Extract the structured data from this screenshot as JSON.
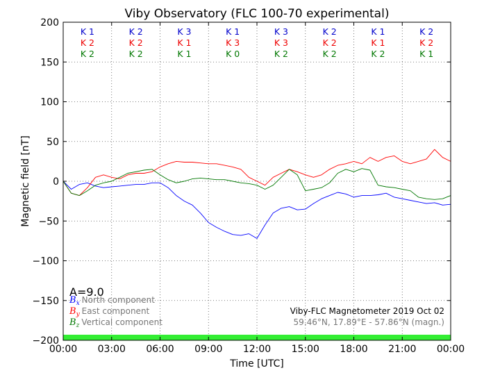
{
  "chart_data": {
    "type": "line",
    "title": "Viby Observatory (FLC 100-70 experimental)",
    "xlabel": "Time [UTC]",
    "ylabel": "Magnetic field [nT]",
    "xlim": [
      0,
      24
    ],
    "ylim": [
      -200,
      200
    ],
    "x_ticks": [
      {
        "v": 0,
        "label": "00:00"
      },
      {
        "v": 3,
        "label": "03:00"
      },
      {
        "v": 6,
        "label": "06:00"
      },
      {
        "v": 9,
        "label": "09:00"
      },
      {
        "v": 12,
        "label": "12:00"
      },
      {
        "v": 15,
        "label": "15:00"
      },
      {
        "v": 18,
        "label": "18:00"
      },
      {
        "v": 21,
        "label": "21:00"
      },
      {
        "v": 24,
        "label": "00:00"
      }
    ],
    "y_ticks": [
      {
        "v": 200,
        "label": "200"
      },
      {
        "v": 150,
        "label": "150"
      },
      {
        "v": 100,
        "label": "100"
      },
      {
        "v": 50,
        "label": "50"
      },
      {
        "v": 0,
        "label": "0"
      },
      {
        "v": -50,
        "label": "−50"
      },
      {
        "v": -100,
        "label": "−100"
      },
      {
        "v": -150,
        "label": "−150"
      },
      {
        "v": -200,
        "label": "−200"
      }
    ],
    "grid": true,
    "band": {
      "from": -200,
      "to": -193,
      "color": "#33ee33"
    },
    "x": [
      0,
      0.5,
      1,
      1.5,
      2,
      2.5,
      3,
      3.5,
      4,
      4.5,
      5,
      5.5,
      6,
      6.5,
      7,
      7.5,
      8,
      8.5,
      9,
      9.5,
      10,
      10.5,
      11,
      11.5,
      12,
      12.5,
      13,
      13.5,
      14,
      14.5,
      15,
      15.5,
      16,
      16.5,
      17,
      17.5,
      18,
      18.5,
      19,
      19.5,
      20,
      20.5,
      21,
      21.5,
      22,
      22.5,
      23,
      23.5,
      24
    ],
    "series": [
      {
        "key": "bx",
        "color": "#0000ff",
        "values": [
          0,
          -10,
          -4,
          -2,
          -6,
          -8,
          -7,
          -6,
          -5,
          -4,
          -4,
          -2,
          -2,
          -8,
          -18,
          -25,
          -30,
          -40,
          -52,
          -58,
          -63,
          -67,
          -68,
          -66,
          -72,
          -55,
          -40,
          -34,
          -32,
          -36,
          -35,
          -28,
          -22,
          -18,
          -14,
          -16,
          -20,
          -18,
          -18,
          -17,
          -15,
          -20,
          -22,
          -24,
          -26,
          -28,
          -27,
          -30,
          -29
        ]
      },
      {
        "key": "by",
        "color": "#ff0000",
        "values": [
          0,
          -15,
          -18,
          -8,
          5,
          8,
          5,
          3,
          8,
          10,
          10,
          12,
          18,
          22,
          25,
          24,
          24,
          23,
          22,
          22,
          20,
          18,
          15,
          5,
          0,
          -5,
          5,
          10,
          15,
          12,
          8,
          5,
          8,
          15,
          20,
          22,
          25,
          22,
          30,
          25,
          30,
          32,
          25,
          22,
          25,
          28,
          40,
          30,
          25
        ]
      },
      {
        "key": "bz",
        "color": "#007700",
        "values": [
          0,
          -15,
          -18,
          -12,
          -5,
          -2,
          0,
          5,
          10,
          12,
          14,
          15,
          8,
          2,
          -2,
          0,
          3,
          4,
          3,
          2,
          2,
          0,
          -2,
          -3,
          -5,
          -10,
          -5,
          5,
          15,
          8,
          -12,
          -10,
          -8,
          -2,
          10,
          15,
          12,
          16,
          14,
          -5,
          -7,
          -8,
          -10,
          -12,
          -20,
          -22,
          -23,
          -22,
          -18
        ]
      }
    ],
    "k_index": [
      {
        "x": 1.5,
        "k1": "K 1",
        "k2": "K 2",
        "k3": "K 2"
      },
      {
        "x": 4.5,
        "k1": "K 2",
        "k2": "K 2",
        "k3": "K 2"
      },
      {
        "x": 7.5,
        "k1": "K 3",
        "k2": "K 1",
        "k3": "K 1"
      },
      {
        "x": 10.5,
        "k1": "K 1",
        "k2": "K 3",
        "k3": "K 0"
      },
      {
        "x": 13.5,
        "k1": "K 3",
        "k2": "K 3",
        "k3": "K 2"
      },
      {
        "x": 16.5,
        "k1": "K 2",
        "k2": "K 2",
        "k3": "K 2"
      },
      {
        "x": 19.5,
        "k1": "K 1",
        "k2": "K 1",
        "k3": "K 2"
      },
      {
        "x": 22.5,
        "k1": "K 2",
        "k2": "K 2",
        "k3": "K 1"
      }
    ],
    "k_colors": [
      "#0000cc",
      "#ee0000",
      "#007700"
    ],
    "legend": [
      {
        "sym": "B",
        "sub": "x",
        "text": "North component",
        "color": "#0000ff"
      },
      {
        "sym": "B",
        "sub": "y",
        "text": "East component",
        "color": "#ff0000"
      },
      {
        "sym": "B",
        "sub": "z",
        "text": "Vertical component",
        "color": "#007700"
      }
    ],
    "a_index": "A=9.0",
    "info_line1": "Viby-FLC Magnetometer 2019 Oct 02",
    "info_line2": "59.46°N, 17.89°E - 57.86°N (magn.)"
  }
}
